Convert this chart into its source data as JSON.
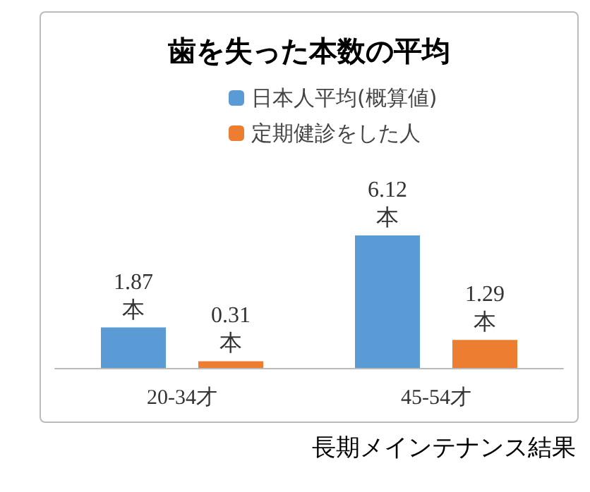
{
  "chart_data": {
    "type": "bar",
    "title": "歯を失った本数の平均",
    "categories": [
      "20-34才",
      "45-54才"
    ],
    "series": [
      {
        "name": "日本人平均(概算値)",
        "color": "#5b9bd5",
        "values": [
          1.87,
          6.12
        ],
        "value_labels": [
          "1.87\n本",
          "6.12\n本"
        ]
      },
      {
        "name": "定期健診をした人",
        "color": "#ed7d31",
        "values": [
          0.31,
          1.29
        ],
        "value_labels": [
          "0.31\n本",
          "1.29\n本"
        ]
      }
    ],
    "legend": "top",
    "annotations": [
      "長期メインテナンス結果"
    ]
  }
}
